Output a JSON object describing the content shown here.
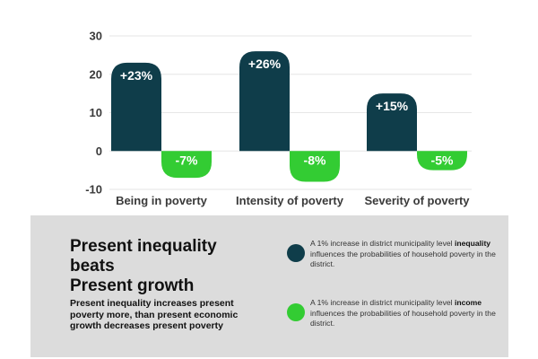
{
  "chart_data": {
    "type": "bar",
    "categories": [
      "Being in poverty",
      "Intensity of poverty",
      "Severity of poverty"
    ],
    "series": [
      {
        "values": [
          23,
          26,
          15
        ],
        "labels": [
          "+23%",
          "+26%",
          "+15%"
        ],
        "color": "#0f3d4a"
      },
      {
        "values": [
          -7,
          -8,
          -5
        ],
        "labels": [
          "-7%",
          "-8%",
          "-5%"
        ],
        "color": "#33cc33"
      }
    ],
    "ylim": [
      -10,
      30
    ],
    "yticks": [
      30,
      20,
      10,
      0,
      -10
    ],
    "grid": true
  },
  "panel": {
    "headline": [
      "Present inequality",
      "beats",
      "Present growth"
    ],
    "subtext": "Present inequality increases present poverty more, than present economic growth decreases present poverty",
    "legend": [
      {
        "color": "#0f3d4a",
        "pre": "A 1% increase in district municipality level",
        "bold": "inequality",
        "post": "influences the probabilities of household poverty in the district."
      },
      {
        "color": "#33cc33",
        "pre": "A 1% increase in district municipality level",
        "bold": "income",
        "post": "influences the probabilities of household poverty in the district."
      }
    ]
  }
}
